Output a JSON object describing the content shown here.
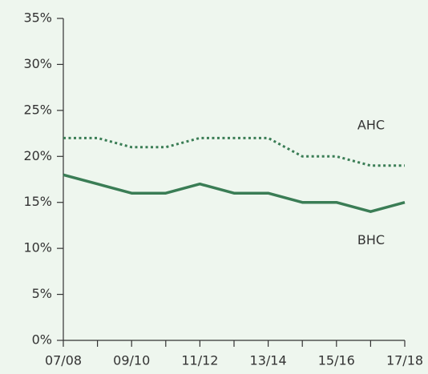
{
  "chart_data": {
    "type": "line",
    "categories": [
      "07/08",
      null,
      "09/10",
      null,
      "11/12",
      null,
      "13/14",
      null,
      "15/16",
      null,
      "17/18"
    ],
    "series": [
      {
        "name": "AHC",
        "color": "#3a7d55",
        "dash": "dotted",
        "values": [
          22,
          22,
          21,
          21,
          22,
          22,
          22,
          20,
          20,
          19,
          19
        ]
      },
      {
        "name": "BHC",
        "color": "#3a7d55",
        "dash": "solid",
        "values": [
          18,
          17,
          16,
          16,
          17,
          16,
          16,
          15,
          15,
          14,
          15
        ]
      }
    ],
    "ylim": [
      0,
      35
    ],
    "yticks": [
      {
        "value": 0,
        "label": "0%"
      },
      {
        "value": 5,
        "label": "5%"
      },
      {
        "value": 10,
        "label": "10%"
      },
      {
        "value": 15,
        "label": "15%"
      },
      {
        "value": 20,
        "label": "20%"
      },
      {
        "value": 25,
        "label": "25%"
      },
      {
        "value": 30,
        "label": "30%"
      },
      {
        "value": 35,
        "label": "35%"
      }
    ],
    "grid": false
  }
}
